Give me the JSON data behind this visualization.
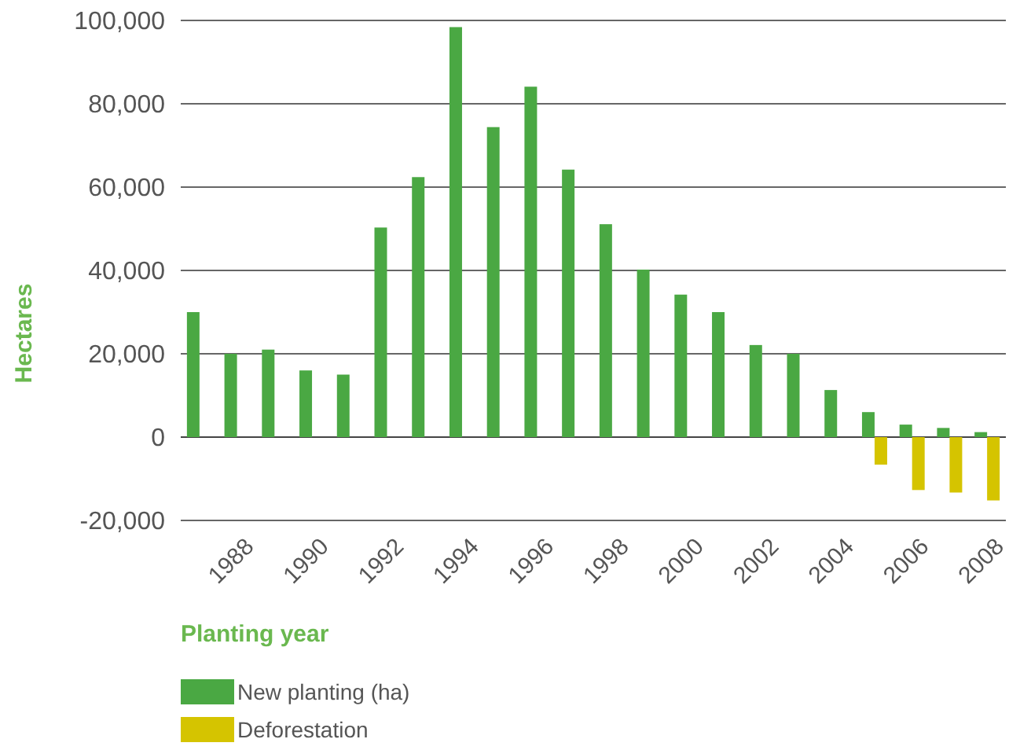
{
  "chart_data": {
    "type": "bar",
    "xlabel": "Planting year",
    "ylabel": "Hectares",
    "categories": [
      null,
      "1988",
      null,
      "1990",
      null,
      "1992",
      null,
      "1994",
      null,
      "1996",
      null,
      "1998",
      null,
      "2000",
      null,
      "2002",
      null,
      "2004",
      null,
      "2006",
      null,
      "2008"
    ],
    "series": [
      {
        "name": "New planting (ha)",
        "color": "#4aa843",
        "values": [
          30000,
          20000,
          21000,
          16000,
          15000,
          50300,
          62400,
          98400,
          74400,
          84100,
          64200,
          51100,
          40200,
          34200,
          30000,
          22100,
          20000,
          11300,
          6000,
          3000,
          2200,
          1200
        ]
      },
      {
        "name": "Deforestation",
        "color": "#d5c400",
        "values": [
          null,
          null,
          null,
          null,
          null,
          null,
          null,
          null,
          null,
          null,
          null,
          null,
          null,
          null,
          null,
          null,
          null,
          null,
          -6600,
          -12700,
          -13300,
          -15200
        ]
      }
    ],
    "ylim": [
      -20000,
      100000
    ],
    "yticks": [
      {
        "value": -20000,
        "label": "-20,000"
      },
      0,
      {
        "value": 20000,
        "label": "20,000"
      },
      {
        "value": 40000,
        "label": "40,000"
      },
      {
        "value": 60000,
        "label": "60,000"
      },
      {
        "value": 80000,
        "label": "80,000"
      },
      {
        "value": 100000,
        "label": "100,000"
      }
    ],
    "grid": "y",
    "legend": "bottom"
  }
}
